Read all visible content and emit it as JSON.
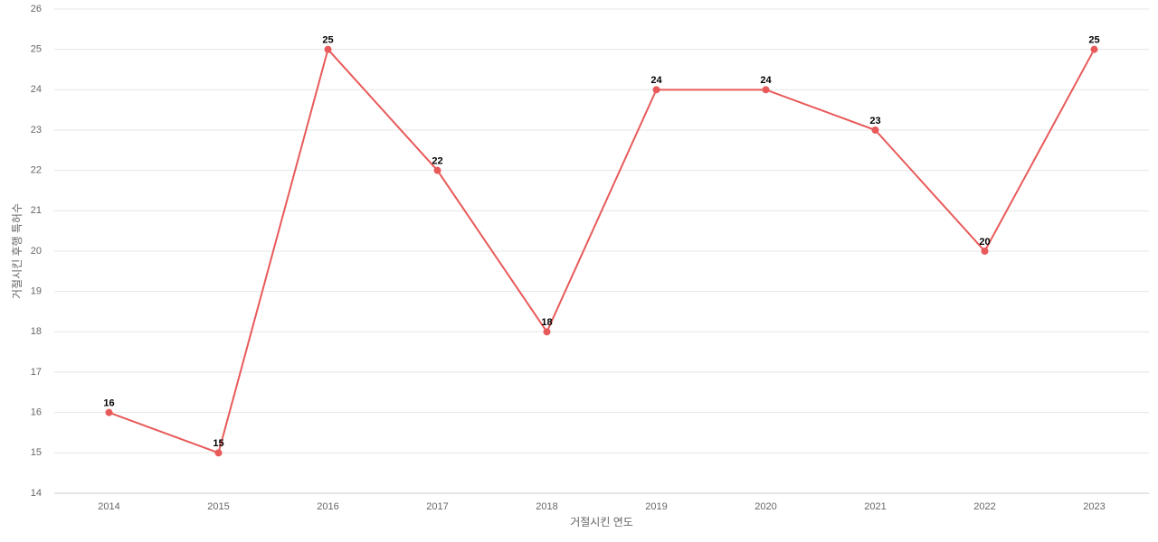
{
  "chart_data": {
    "type": "line",
    "x_label": "거절시킨 연도",
    "y_label": "거절시킨 후행 특허수",
    "categories": [
      "2014",
      "2015",
      "2016",
      "2017",
      "2018",
      "2019",
      "2020",
      "2021",
      "2022",
      "2023"
    ],
    "values": [
      16,
      15,
      25,
      22,
      18,
      24,
      24,
      23,
      20,
      25
    ],
    "color": "#e85a5a",
    "ylim": [
      14,
      26
    ],
    "yticks": [
      14,
      15,
      16,
      17,
      18,
      19,
      20,
      21,
      22,
      23,
      24,
      25,
      26
    ],
    "grid": true
  }
}
